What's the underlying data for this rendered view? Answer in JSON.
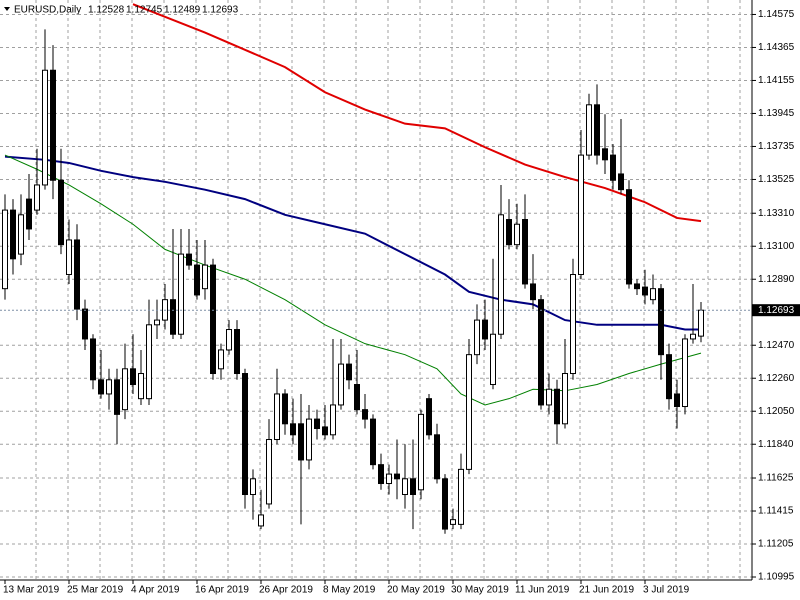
{
  "chart_data": {
    "type": "candlestick",
    "title": "EURUSD,Daily",
    "categories": [
      "13 Mar 2019",
      null,
      null,
      null,
      null,
      null,
      null,
      null,
      "25 Mar 2019",
      null,
      null,
      null,
      null,
      null,
      null,
      null,
      "4 Apr 2019",
      null,
      null,
      null,
      null,
      null,
      null,
      null,
      "16 Apr 2019",
      null,
      null,
      null,
      null,
      null,
      null,
      null,
      "26 Apr 2019",
      null,
      null,
      null,
      null,
      null,
      null,
      null,
      "8 May 2019",
      null,
      null,
      null,
      null,
      null,
      null,
      null,
      "20 May 2019",
      null,
      null,
      null,
      null,
      null,
      null,
      null,
      "30 May 2019",
      null,
      null,
      null,
      null,
      null,
      null,
      null,
      "11 Jun 2019",
      null,
      null,
      null,
      null,
      null,
      null,
      null,
      "21 Jun 2019",
      null,
      null,
      null,
      null,
      null,
      null,
      null,
      "3 Jul 2019",
      null,
      null,
      null,
      null,
      null,
      null,
      null
    ],
    "candles": {
      "open": [
        1.1283,
        1.1333,
        1.1305,
        1.134,
        1.1333,
        1.1349,
        1.1422,
        1.1352,
        1.1292,
        1.1314,
        1.127,
        1.1251,
        1.1225,
        1.1216,
        1.1225,
        1.1206,
        1.1232,
        1.1213,
        1.1213,
        1.126,
        1.1263,
        1.1276,
        1.1254,
        1.1305,
        1.1298,
        1.1283,
        1.1298,
        1.1232,
        1.1244,
        1.1257,
        1.1229,
        1.1152,
        1.1132,
        1.1146,
        1.1187,
        1.1216,
        1.1197,
        1.1197,
        1.1174,
        1.12,
        1.1195,
        1.119,
        1.1209,
        1.1235,
        1.1222,
        1.1206,
        1.12,
        1.1171,
        1.1159,
        1.1165,
        1.1152,
        1.1162,
        1.1155,
        1.1213,
        1.119,
        1.1162,
        1.1133,
        1.1133,
        1.1168,
        1.1241,
        1.1263,
        1.1222,
        1.1254,
        1.1327,
        1.1311,
        1.1327,
        1.1286,
        1.1276,
        1.1209,
        1.1219,
        1.1197,
        1.1229,
        1.1292,
        1.1368,
        1.14,
        1.1372,
        1.1368,
        1.1356,
        1.1346,
        1.1286,
        1.1284,
        1.1276,
        1.1283,
        1.1241,
        1.1216,
        1.1208,
        1.1251,
        1.12528
      ],
      "high": [
        1.1343,
        1.134,
        1.1343,
        1.1356,
        1.1372,
        1.1448,
        1.1438,
        1.1372,
        1.1327,
        1.1324,
        1.1276,
        1.1254,
        1.1244,
        1.1232,
        1.1232,
        1.1248,
        1.1254,
        1.1244,
        1.1276,
        1.1276,
        1.1286,
        1.1321,
        1.1321,
        1.1321,
        1.1314,
        1.1314,
        1.1302,
        1.1248,
        1.1263,
        1.1263,
        1.1232,
        1.1168,
        1.1155,
        1.12,
        1.1232,
        1.1219,
        1.1213,
        1.1216,
        1.1209,
        1.1206,
        1.1209,
        1.1251,
        1.1251,
        1.1241,
        1.1244,
        1.1216,
        1.1203,
        1.1178,
        1.1171,
        1.1187,
        1.1184,
        1.1187,
        1.1206,
        1.1216,
        1.1197,
        1.1165,
        1.1143,
        1.1178,
        1.1251,
        1.1273,
        1.1276,
        1.1302,
        1.1349,
        1.134,
        1.1337,
        1.1343,
        1.1305,
        1.1279,
        1.1229,
        1.1225,
        1.1251,
        1.1302,
        1.1384,
        1.1407,
        1.1413,
        1.1394,
        1.1375,
        1.1391,
        1.1352,
        1.1289,
        1.1295,
        1.1292,
        1.1286,
        1.1248,
        1.1225,
        1.1254,
        1.1286,
        1.12745
      ],
      "low": [
        1.1276,
        1.1292,
        1.1298,
        1.1314,
        1.133,
        1.1346,
        1.134,
        1.1305,
        1.1286,
        1.1263,
        1.1244,
        1.1219,
        1.1213,
        1.1206,
        1.1184,
        1.12,
        1.1216,
        1.1209,
        1.1209,
        1.1251,
        1.1257,
        1.1251,
        1.1251,
        1.1295,
        1.1276,
        1.1276,
        1.1225,
        1.1225,
        1.1241,
        1.1225,
        1.1143,
        1.1136,
        1.113,
        1.1143,
        1.1184,
        1.119,
        1.1184,
        1.1133,
        1.1168,
        1.1187,
        1.1187,
        1.1187,
        1.1206,
        1.1219,
        1.1203,
        1.1194,
        1.1168,
        1.1155,
        1.1152,
        1.1149,
        1.1143,
        1.113,
        1.1149,
        1.1187,
        1.1159,
        1.1127,
        1.113,
        1.113,
        1.1165,
        1.1235,
        1.1244,
        1.1219,
        1.1251,
        1.1308,
        1.1308,
        1.1283,
        1.127,
        1.1206,
        1.1203,
        1.1184,
        1.1194,
        1.1225,
        1.1289,
        1.1365,
        1.1362,
        1.1356,
        1.1346,
        1.1343,
        1.1283,
        1.1279,
        1.1273,
        1.1273,
        1.1225,
        1.1206,
        1.1194,
        1.1203,
        1.1248,
        1.12489
      ],
      "close": [
        1.1333,
        1.1302,
        1.133,
        1.1321,
        1.1349,
        1.1422,
        1.1352,
        1.1311,
        1.1314,
        1.127,
        1.1251,
        1.1225,
        1.1216,
        1.1225,
        1.1203,
        1.1232,
        1.1222,
        1.1229,
        1.126,
        1.1263,
        1.1276,
        1.1254,
        1.1305,
        1.1298,
        1.1279,
        1.1298,
        1.1229,
        1.1244,
        1.1257,
        1.1229,
        1.1152,
        1.1162,
        1.1139,
        1.1187,
        1.1216,
        1.1197,
        1.119,
        1.1174,
        1.12,
        1.1194,
        1.119,
        1.1209,
        1.1235,
        1.1225,
        1.1206,
        1.12,
        1.1171,
        1.1159,
        1.1165,
        1.1162,
        1.1162,
        1.1152,
        1.1203,
        1.119,
        1.1162,
        1.113,
        1.1136,
        1.1168,
        1.1241,
        1.1263,
        1.1251,
        1.1254,
        1.133,
        1.1311,
        1.1324,
        1.1286,
        1.1276,
        1.1209,
        1.1219,
        1.1197,
        1.1229,
        1.1292,
        1.1368,
        1.14,
        1.1368,
        1.1365,
        1.1352,
        1.1346,
        1.1286,
        1.1283,
        1.1279,
        1.1283,
        1.1241,
        1.1213,
        1.1208,
        1.1251,
        1.1254,
        1.12693
      ]
    },
    "series": [
      {
        "color": "#e00000",
        "x": [
          16,
          20,
          25,
          30,
          35,
          40,
          45,
          50,
          55,
          60,
          65,
          70,
          75,
          80,
          84,
          87
        ],
        "values": [
          1.1464,
          1.1456,
          1.1446,
          1.1435,
          1.1424,
          1.1408,
          1.1397,
          1.1388,
          1.1385,
          1.1373,
          1.1362,
          1.1354,
          1.1347,
          1.1338,
          1.1328,
          1.1326
        ]
      },
      {
        "color": "#000080",
        "x": [
          0,
          5,
          8,
          12,
          16,
          20,
          25,
          30,
          35,
          40,
          45,
          50,
          55,
          58,
          62,
          66,
          70,
          74,
          78,
          82,
          85,
          87
        ],
        "values": [
          1.1367,
          1.1365,
          1.1363,
          1.1358,
          1.1354,
          1.1351,
          1.1346,
          1.134,
          1.133,
          1.1324,
          1.1318,
          1.1305,
          1.1292,
          1.1281,
          1.1276,
          1.1273,
          1.1263,
          1.126,
          1.126,
          1.126,
          1.1257,
          1.1257
        ]
      },
      {
        "color": "#008000",
        "x": [
          0,
          4,
          8,
          12,
          16,
          20,
          25,
          30,
          35,
          40,
          45,
          50,
          54,
          57,
          60,
          63,
          66,
          70,
          74,
          78,
          82,
          87
        ],
        "values": [
          1.1368,
          1.1359,
          1.1349,
          1.1337,
          1.1324,
          1.1308,
          1.1298,
          1.1289,
          1.1276,
          1.126,
          1.1248,
          1.1241,
          1.1232,
          1.1216,
          1.1209,
          1.1213,
          1.1219,
          1.1218,
          1.1222,
          1.1229,
          1.1235,
          1.1242
        ]
      }
    ],
    "ylim": [
      1.10976,
      1.14667
    ],
    "yticks": [
      1.14575,
      1.14365,
      1.14155,
      1.13945,
      1.13735,
      1.13525,
      {
        "value": 1.1331,
        "label": "1.13310"
      },
      {
        "value": 1.131,
        "label": "1.13100"
      },
      {
        "value": 1.1289,
        "label": "1.12890"
      },
      {
        "value": 1.1247,
        "label": "1.12470"
      },
      {
        "value": 1.1226,
        "label": "1.12260"
      },
      {
        "value": 1.1205,
        "label": "1.12050"
      },
      {
        "value": 1.1184,
        "label": "1.11840"
      },
      1.11625,
      1.11415,
      1.11205,
      1.10995
    ],
    "grid": true
  }
}
